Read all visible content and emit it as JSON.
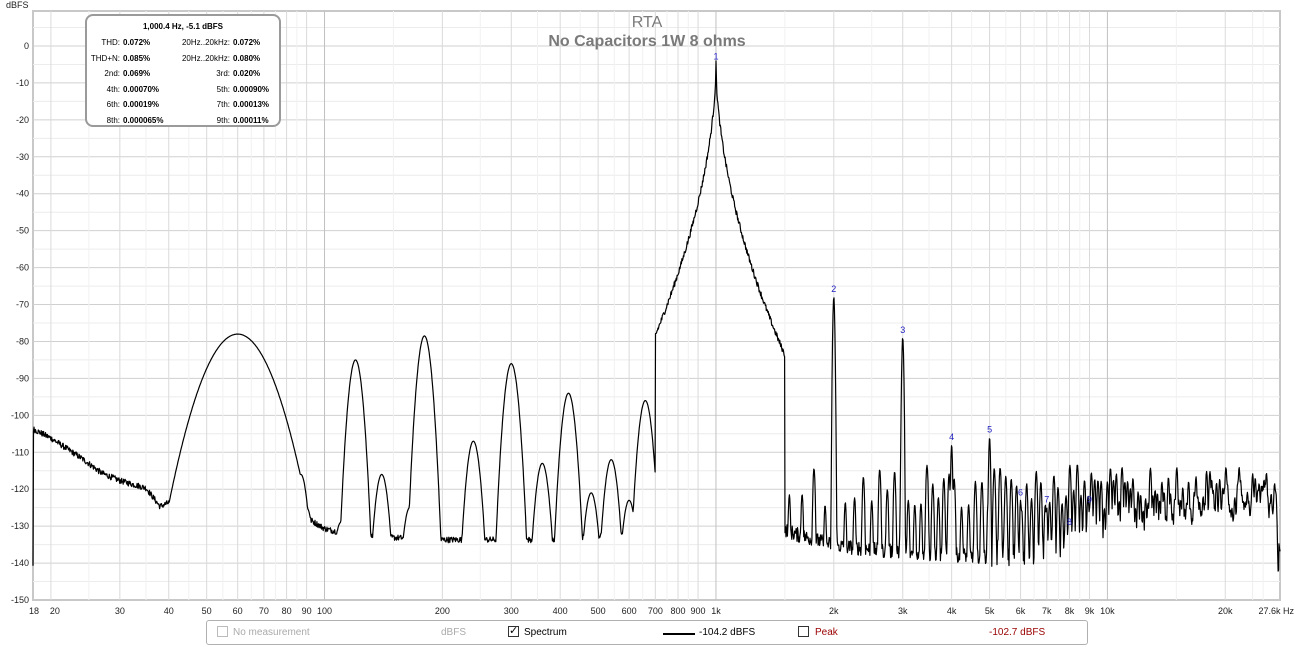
{
  "chart_data": {
    "type": "line",
    "title": "RTA",
    "subtitle": "No Capacitors 1W 8 ohms",
    "ylabel": "dBFS",
    "xunit": "Hz",
    "xscale": "log",
    "xlim": [
      18,
      27600
    ],
    "ylim": [
      -150,
      10
    ],
    "grid": true,
    "x_ticks": [
      {
        "v": 18,
        "label": "18"
      },
      {
        "v": 20,
        "label": "20"
      },
      {
        "v": 30,
        "label": "30"
      },
      {
        "v": 40,
        "label": "40"
      },
      {
        "v": 50,
        "label": "50"
      },
      {
        "v": 60,
        "label": "60"
      },
      {
        "v": 70,
        "label": "70"
      },
      {
        "v": 80,
        "label": "80"
      },
      {
        "v": 90,
        "label": "90"
      },
      {
        "v": 100,
        "label": "100"
      },
      {
        "v": 200,
        "label": "200"
      },
      {
        "v": 300,
        "label": "300"
      },
      {
        "v": 400,
        "label": "400"
      },
      {
        "v": 500,
        "label": "500"
      },
      {
        "v": 600,
        "label": "600"
      },
      {
        "v": 700,
        "label": "700"
      },
      {
        "v": 800,
        "label": "800"
      },
      {
        "v": 900,
        "label": "900"
      },
      {
        "v": 1000,
        "label": "1k"
      },
      {
        "v": 2000,
        "label": "2k"
      },
      {
        "v": 3000,
        "label": "3k"
      },
      {
        "v": 4000,
        "label": "4k"
      },
      {
        "v": 5000,
        "label": "5k"
      },
      {
        "v": 6000,
        "label": "6k"
      },
      {
        "v": 7000,
        "label": "7k"
      },
      {
        "v": 8000,
        "label": "8k"
      },
      {
        "v": 9000,
        "label": "9k"
      },
      {
        "v": 10000,
        "label": "10k"
      },
      {
        "v": 20000,
        "label": "20k"
      },
      {
        "v": 27600,
        "label": "27.6k Hz"
      }
    ],
    "y_ticks": [
      0,
      -10,
      -20,
      -30,
      -40,
      -50,
      -60,
      -70,
      -80,
      -90,
      -100,
      -110,
      -120,
      -130,
      -140,
      -150
    ],
    "fundamental": {
      "freq": 1000.4,
      "level": -5.1
    },
    "harmonics": [
      {
        "label": "1",
        "freq": 1000,
        "level": -5
      },
      {
        "label": "2",
        "freq": 2000,
        "level": -68
      },
      {
        "label": "3",
        "freq": 3000,
        "level": -79
      },
      {
        "label": "4",
        "freq": 4000,
        "level": -108
      },
      {
        "label": "5",
        "freq": 5000,
        "level": -106
      },
      {
        "label": "6",
        "freq": 6000,
        "level": -123
      },
      {
        "label": "7",
        "freq": 7000,
        "level": -125
      },
      {
        "label": "8",
        "freq": 8000,
        "level": -131
      },
      {
        "label": "9",
        "freq": 9000,
        "level": -125
      }
    ],
    "hum_peaks": [
      {
        "freq": 60,
        "level": -78
      },
      {
        "freq": 120,
        "level": -85
      },
      {
        "freq": 180,
        "level": -78.5
      },
      {
        "freq": 240,
        "level": -107
      },
      {
        "freq": 300,
        "level": -86
      },
      {
        "freq": 360,
        "level": -113
      },
      {
        "freq": 420,
        "level": -94
      },
      {
        "freq": 480,
        "level": -121
      },
      {
        "freq": 540,
        "level": -112
      },
      {
        "freq": 600,
        "level": -123
      },
      {
        "freq": 660,
        "level": -96
      },
      {
        "freq": 780,
        "level": -103
      },
      {
        "freq": 900,
        "level": -109
      },
      {
        "freq": 960,
        "level": -114
      },
      {
        "freq": 80,
        "level": -119
      },
      {
        "freq": 87,
        "level": -116
      },
      {
        "freq": 110,
        "level": -129
      },
      {
        "freq": 90,
        "level": -125
      },
      {
        "freq": 140,
        "level": -116
      },
      {
        "freq": 165,
        "level": -125
      }
    ],
    "series": [
      {
        "line": "spectrum",
        "color": "#000000",
        "noise_floor": [
          [
            18,
            -104
          ],
          [
            20,
            -106.5
          ],
          [
            24,
            -112
          ],
          [
            27,
            -116
          ],
          [
            30,
            -118
          ],
          [
            35,
            -120
          ],
          [
            38,
            -125
          ],
          [
            42,
            -123
          ],
          [
            45,
            -129
          ],
          [
            50,
            -128
          ],
          [
            54,
            -130
          ],
          [
            70,
            -130
          ],
          [
            90,
            -128
          ],
          [
            100,
            -131
          ],
          [
            120,
            -133
          ],
          [
            200,
            -134
          ],
          [
            300,
            -134
          ],
          [
            400,
            -134
          ],
          [
            500,
            -133
          ],
          [
            600,
            -133
          ],
          [
            700,
            -130
          ],
          [
            800,
            -127
          ],
          [
            900,
            -123
          ],
          [
            950,
            -118
          ],
          [
            1000,
            -5
          ],
          [
            1050,
            -118
          ],
          [
            1100,
            -124
          ],
          [
            1300,
            -129
          ],
          [
            1600,
            -133
          ],
          [
            2000,
            -136
          ],
          [
            3000,
            -138
          ],
          [
            5000,
            -139
          ],
          [
            10000,
            -140
          ],
          [
            27600,
            -141
          ]
        ]
      }
    ]
  },
  "readout": {
    "header": "1,000.4 Hz, -5.1 dBFS",
    "rows": [
      {
        "l1": "THD:",
        "v1": "0.072%",
        "l2": "20Hz..20kHz:",
        "v2": "0.072%"
      },
      {
        "l1": "THD+N:",
        "v1": "0.085%",
        "l2": "20Hz..20kHz:",
        "v2": "0.080%"
      },
      {
        "l1": "2nd:",
        "v1": "0.069%",
        "l2": "3rd:",
        "v2": "0.020%"
      },
      {
        "l1": "4th:",
        "v1": "0.00070%",
        "l2": "5th:",
        "v2": "0.00090%"
      },
      {
        "l1": "6th:",
        "v1": "0.00019%",
        "l2": "7th:",
        "v2": "0.00013%"
      },
      {
        "l1": "8th:",
        "v1": "0.000065%",
        "l2": "9th:",
        "v2": "0.00011%"
      }
    ]
  },
  "legend": {
    "no_measurement": "No measurement",
    "unit": "dBFS",
    "spectrum_label": "Spectrum",
    "spectrum_checked": true,
    "spectrum_value": "-104.2 dBFS",
    "peak_label": "Peak",
    "peak_checked": false,
    "peak_value": "-102.7 dBFS",
    "peak_color": "#990000"
  }
}
